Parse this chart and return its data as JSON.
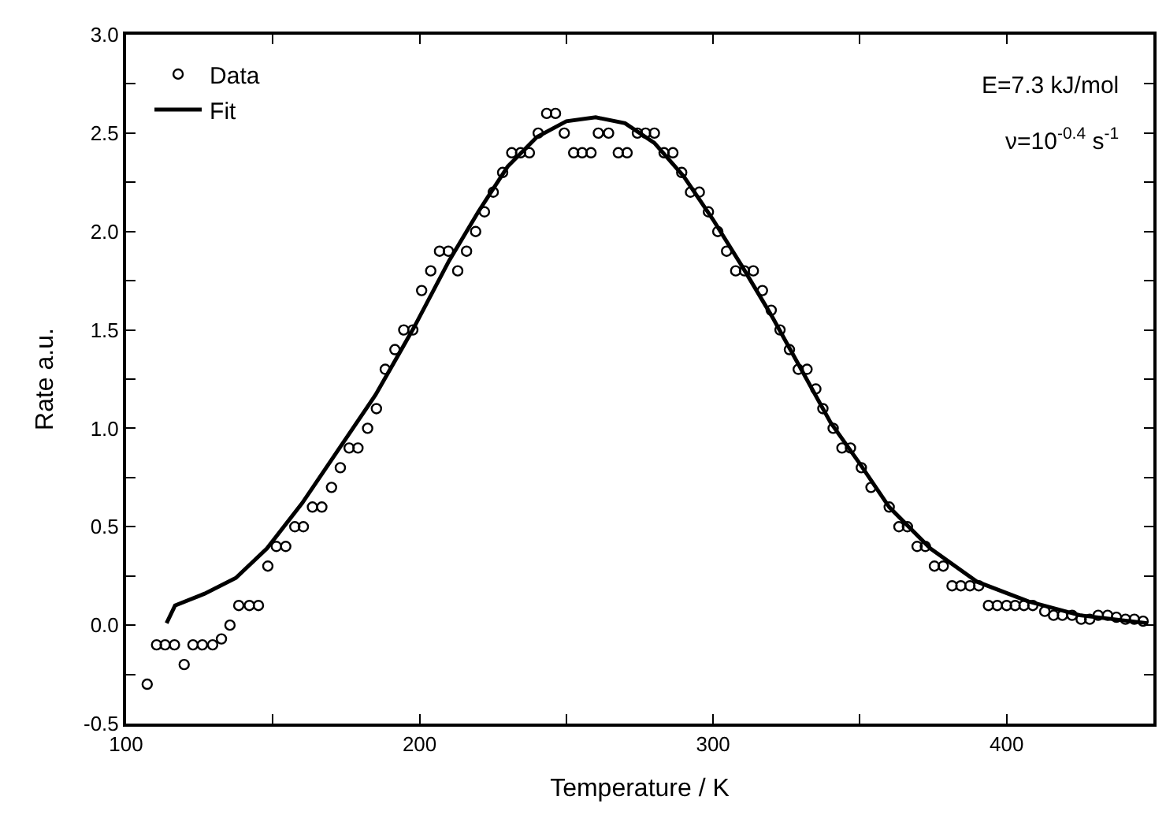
{
  "chart_data": {
    "type": "scatter",
    "xlabel": "Temperature / K",
    "ylabel": "Rate a.u.",
    "annotations": [
      "E=7.3 kJ/mol",
      "ν=10$^{-0.4}$ s$^{-1}$"
    ],
    "series": [
      {
        "name": "Data",
        "type": "scatter",
        "marker": "circle",
        "color": "#000000",
        "x": [
          107.2,
          110.4,
          113.3,
          116.5,
          119.8,
          122.8,
          126,
          129.5,
          132.5,
          135.4,
          138.4,
          142,
          145.1,
          148.3,
          151.2,
          154.4,
          157.5,
          160.4,
          163.5,
          166.7,
          170,
          173,
          176,
          179,
          182.3,
          185.3,
          188.3,
          191.6,
          194.6,
          197.7,
          200.7,
          203.8,
          206.8,
          209.8,
          213,
          216,
          219.1,
          222.1,
          225.1,
          228.3,
          231.4,
          234.4,
          237.4,
          240.4,
          243.3,
          246.3,
          249.3,
          252.5,
          255.4,
          258.4,
          260.9,
          264.4,
          267.7,
          270.7,
          274.2,
          277,
          280,
          283.3,
          286.3,
          289.3,
          292.3,
          295.3,
          298.4,
          301.6,
          304.6,
          307.7,
          310.7,
          313.7,
          316.8,
          319.8,
          322.8,
          326,
          329,
          332,
          335,
          337.4,
          340.9,
          343.9,
          346.8,
          350.5,
          353.8,
          360,
          363.3,
          366.2,
          369.5,
          372.3,
          375.4,
          378.4,
          381.4,
          384.4,
          387.5,
          390.5,
          393.8,
          396.8,
          400,
          402.9,
          405.9,
          408.9,
          413,
          416,
          419,
          422.3,
          425.4,
          428.3,
          431.2,
          434.4,
          437.4,
          440.5,
          443.5,
          446.5
        ],
        "values": [
          -0.3,
          -0.1,
          -0.1,
          -0.1,
          -0.2,
          -0.1,
          -0.1,
          -0.1,
          -0.07,
          0.0,
          0.1,
          0.1,
          0.1,
          0.3,
          0.4,
          0.4,
          0.5,
          0.5,
          0.6,
          0.6,
          0.7,
          0.8,
          0.9,
          0.9,
          1.0,
          1.1,
          1.3,
          1.4,
          1.5,
          1.5,
          1.7,
          1.8,
          1.9,
          1.9,
          1.8,
          1.9,
          2.0,
          2.1,
          2.2,
          2.3,
          2.4,
          2.4,
          2.4,
          2.5,
          2.6,
          2.6,
          2.5,
          2.4,
          2.4,
          2.4,
          2.5,
          2.5,
          2.4,
          2.4,
          2.5,
          2.5,
          2.5,
          2.4,
          2.4,
          2.3,
          2.2,
          2.2,
          2.1,
          2.0,
          1.9,
          1.8,
          1.8,
          1.8,
          1.7,
          1.6,
          1.5,
          1.4,
          1.3,
          1.3,
          1.2,
          1.1,
          1.0,
          0.9,
          0.9,
          0.8,
          0.7,
          0.6,
          0.5,
          0.5,
          0.4,
          0.4,
          0.3,
          0.3,
          0.2,
          0.2,
          0.2,
          0.2,
          0.1,
          0.1,
          0.1,
          0.1,
          0.1,
          0.1,
          0.07,
          0.05,
          0.05,
          0.05,
          0.03,
          0.03,
          0.05,
          0.05,
          0.04,
          0.03,
          0.03,
          0.02
        ]
      },
      {
        "name": "Fit",
        "type": "line",
        "marker": "none",
        "line_style": "solid",
        "color": "#000000",
        "x": [
          113.8,
          116.7,
          126.8,
          137.4,
          148,
          160,
          170,
          185,
          198,
          210,
          220,
          230,
          240,
          250,
          260,
          270,
          280,
          290,
          300,
          310,
          320,
          330,
          340,
          350,
          360,
          374,
          390,
          407.5,
          425,
          448
        ],
        "values": [
          0.01,
          0.1,
          0.16,
          0.24,
          0.39,
          0.62,
          0.84,
          1.17,
          1.51,
          1.85,
          2.1,
          2.33,
          2.48,
          2.56,
          2.58,
          2.55,
          2.45,
          2.28,
          2.06,
          1.82,
          1.57,
          1.3,
          1.03,
          0.82,
          0.6,
          0.39,
          0.22,
          0.12,
          0.05,
          0.01
        ]
      }
    ],
    "xlim": [
      100,
      450
    ],
    "xticks": [
      100,
      {
        "value": 150,
        "label": null
      },
      200,
      {
        "value": 250,
        "label": null
      },
      300,
      {
        "value": 350,
        "label": null
      },
      400,
      {
        "value": 450,
        "label": null
      }
    ],
    "ylim": [
      -0.5,
      3.0
    ],
    "yticks": [
      {
        "value": -0.5,
        "label": "-0.5"
      },
      {
        "value": -0.25,
        "label": null
      },
      {
        "value": 0,
        "label": "0.0"
      },
      {
        "value": 0.25,
        "label": null
      },
      {
        "value": 0.5,
        "label": "0.5"
      },
      {
        "value": 0.75,
        "label": null
      },
      {
        "value": 1,
        "label": "1.0"
      },
      {
        "value": 1.25,
        "label": null
      },
      {
        "value": 1.5,
        "label": "1.5"
      },
      {
        "value": 1.75,
        "label": null
      },
      {
        "value": 2,
        "label": "2.0"
      },
      {
        "value": 2.25,
        "label": null
      },
      {
        "value": 2.5,
        "label": "2.5"
      },
      {
        "value": 2.75,
        "label": null
      },
      {
        "value": 3,
        "label": "3.0"
      }
    ],
    "legend": "top left"
  }
}
